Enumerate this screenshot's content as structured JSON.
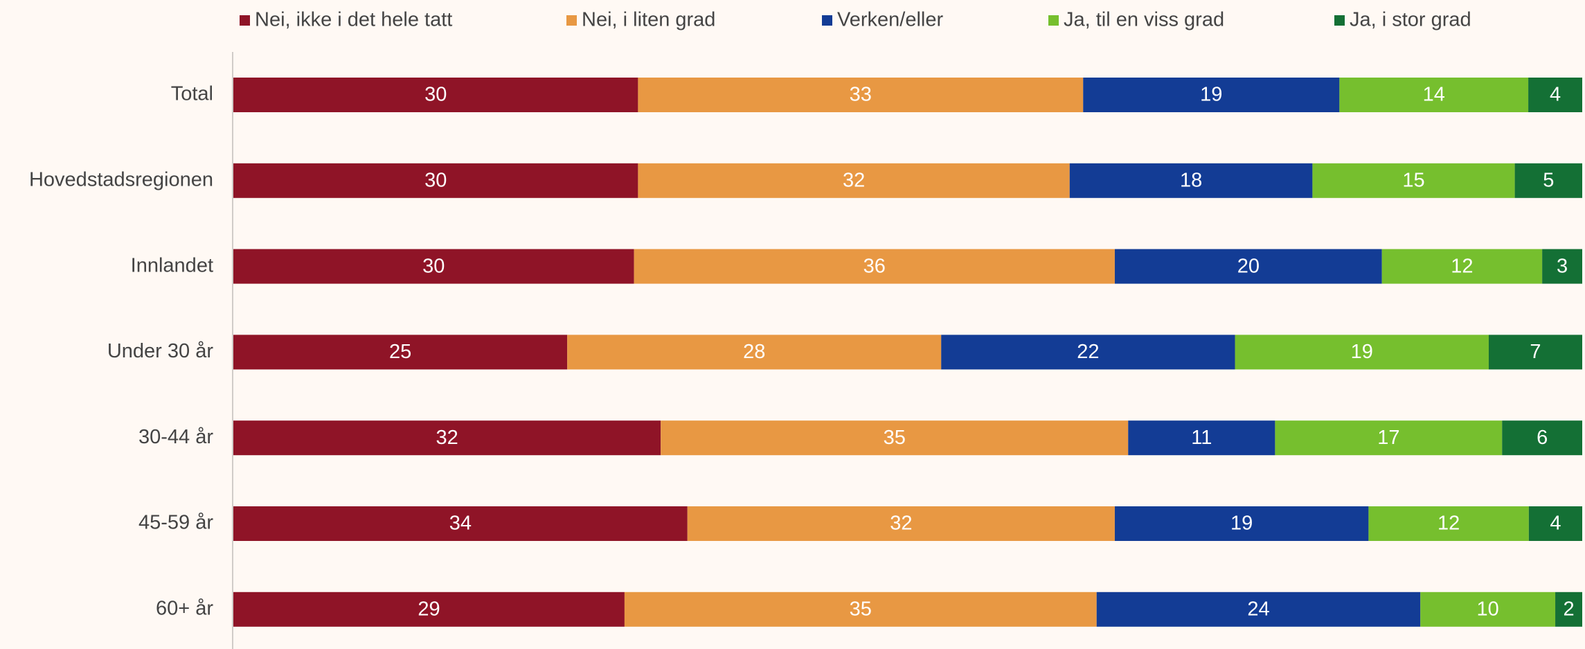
{
  "chart_data": {
    "type": "stacked_barh",
    "categories": [
      "Total",
      "Hovedstadsregionen",
      "Innlandet",
      "Under 30 år",
      "30-44 år",
      "45-59 år",
      "60+ år"
    ],
    "series": [
      {
        "name": "Nei, ikke i det hele tatt",
        "color": "#8f1427",
        "values": [
          30,
          30,
          30,
          25,
          32,
          34,
          29
        ]
      },
      {
        "name": "Nei, i liten grad",
        "color": "#e89843",
        "values": [
          33,
          32,
          36,
          28,
          35,
          32,
          35
        ]
      },
      {
        "name": "Verken/eller",
        "color": "#133c95",
        "values": [
          19,
          18,
          20,
          22,
          11,
          19,
          24
        ]
      },
      {
        "name": "Ja, til en viss grad",
        "color": "#76bf2e",
        "values": [
          14,
          15,
          12,
          19,
          17,
          12,
          10
        ]
      },
      {
        "name": "Ja, i stor grad",
        "color": "#147035",
        "values": [
          4,
          5,
          3,
          7,
          6,
          4,
          2
        ]
      }
    ],
    "legend": "top"
  }
}
